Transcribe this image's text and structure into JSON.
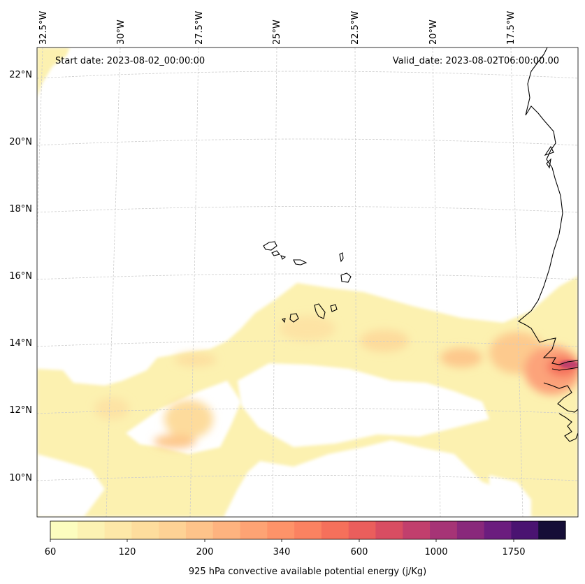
{
  "header": {
    "start_date": "Start date: 2023-08-02_00:00:00",
    "valid_date": "Valid_date: 2023-08-02T06:00:00.00"
  },
  "map": {
    "lon_labels": [
      "32.5°W",
      "30°W",
      "27.5°W",
      "25°W",
      "22.5°W",
      "20°W",
      "17.5°W"
    ],
    "lat_labels": [
      "22°N",
      "20°N",
      "18°N",
      "16°N",
      "14°N",
      "12°N",
      "10°N"
    ],
    "gridlines": true,
    "coastline_color": "#000000"
  },
  "colorbar": {
    "label": "925 hPa convective available potential energy (j/Kg)",
    "tick_labels": [
      "60",
      "120",
      "200",
      "340",
      "600",
      "1000",
      "1750"
    ],
    "colors": [
      "#fcfdbf",
      "#fcf2b3",
      "#fde8a8",
      "#fedd9d",
      "#fed295",
      "#fec38a",
      "#feb37f",
      "#fea374",
      "#fe9369",
      "#fb8261",
      "#f5705b",
      "#ea5e5c",
      "#d84d62",
      "#c13f6d",
      "#a63476",
      "#89287b",
      "#6b1d7e",
      "#4a1371",
      "#150e37"
    ]
  }
}
